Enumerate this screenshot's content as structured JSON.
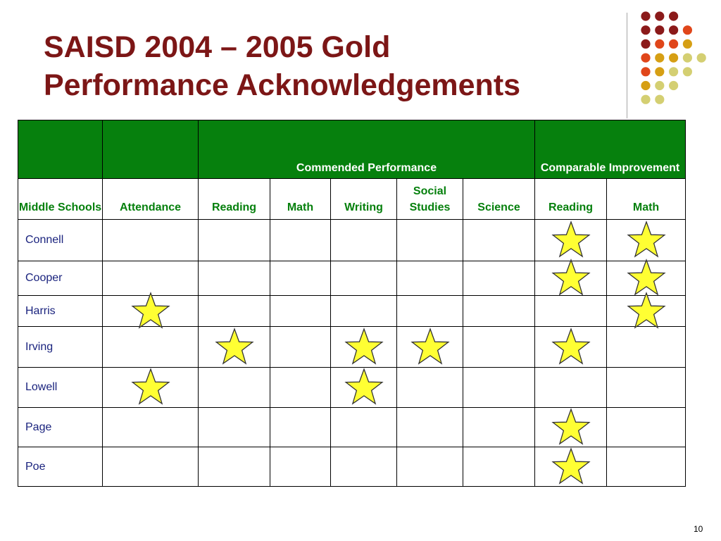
{
  "title": {
    "line1": "SAISD 2004 – 2005 Gold",
    "line2": "Performance Acknowledgements"
  },
  "colors": {
    "title": "#7c1616",
    "header_green": "#06800d",
    "school_text": "#1a237e",
    "star_fill": "#ffff33",
    "star_stroke": "#333333"
  },
  "header": {
    "group_commended": "Commended Performance",
    "group_comparable": "Comparable Improvement"
  },
  "columns": [
    {
      "label": "Middle Schools"
    },
    {
      "label": "Attendance"
    },
    {
      "label": "Reading"
    },
    {
      "label": "Math"
    },
    {
      "label": "Writing"
    },
    {
      "label": "Social Studies"
    },
    {
      "label": "Science"
    },
    {
      "label": "Reading"
    },
    {
      "label": "Math"
    }
  ],
  "acknowledgement_icon": "gold-star-icon",
  "schools": [
    {
      "name": "Connell",
      "stars": [
        false,
        false,
        false,
        false,
        false,
        false,
        true,
        true
      ]
    },
    {
      "name": "Cooper",
      "stars": [
        false,
        false,
        false,
        false,
        false,
        false,
        true,
        true
      ]
    },
    {
      "name": "Harris",
      "stars": [
        true,
        false,
        false,
        false,
        false,
        false,
        false,
        true
      ]
    },
    {
      "name": "Irving",
      "stars": [
        false,
        true,
        false,
        true,
        true,
        false,
        true,
        false
      ]
    },
    {
      "name": "Lowell",
      "stars": [
        true,
        false,
        false,
        true,
        false,
        false,
        false,
        false
      ]
    },
    {
      "name": "Page",
      "stars": [
        false,
        false,
        false,
        false,
        false,
        false,
        true,
        false
      ]
    },
    {
      "name": "Poe",
      "stars": [
        false,
        false,
        false,
        false,
        false,
        false,
        true,
        false
      ]
    }
  ],
  "dot_colors": {
    "maroon": "#8b1a1a",
    "orange": "#e0461a",
    "gold": "#d69f14",
    "khaki": "#d4cf72"
  },
  "dot_rows": [
    [
      "maroon",
      "maroon",
      "maroon"
    ],
    [
      "maroon",
      "maroon",
      "maroon",
      "orange"
    ],
    [
      "maroon",
      "orange",
      "orange",
      "gold"
    ],
    [
      "orange",
      "gold",
      "gold",
      "khaki",
      "khaki"
    ],
    [
      "orange",
      "gold",
      "khaki",
      "khaki"
    ],
    [
      "gold",
      "khaki",
      "khaki"
    ],
    [
      "khaki",
      "khaki"
    ]
  ],
  "page_number": "10"
}
